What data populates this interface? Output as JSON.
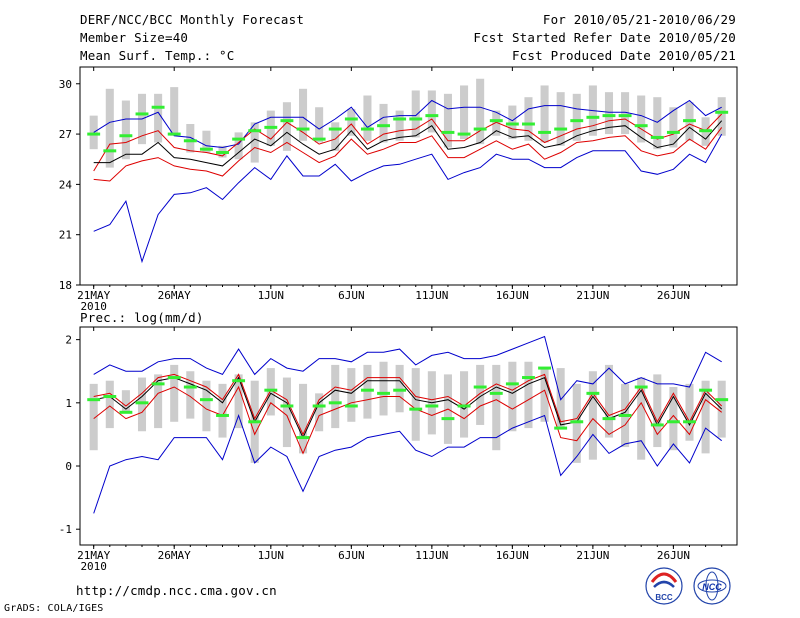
{
  "header": {
    "title": "DERF/NCC/BCC Monthly Forecast",
    "member_size": "Member Size=40",
    "variable1": "Mean Surf. Temp.: °C",
    "period": "For 2010/05/21-2010/06/29",
    "started": "Fcst Started Refer Date 2010/05/20",
    "produced": "Fcst Produced Date 2010/05/21"
  },
  "footer": {
    "url": "http://cmdp.ncc.cma.gov.cn",
    "grads": "GrADS: COLA/IGES",
    "logo1_text": "BCC",
    "logo2_text": "NCC"
  },
  "colors": {
    "box": "#cccccc",
    "mean": "#000000",
    "spread": "#dd0000",
    "envelope": "#0000cc",
    "median": "#33ee33"
  },
  "chart_data": [
    {
      "type": "box",
      "name": "temperature",
      "title": "Mean Surf. Temp.: °C",
      "ylim": [
        18,
        31
      ],
      "yticks": [
        18,
        21,
        24,
        27,
        30
      ],
      "x_tick_labels": [
        "21MAY",
        "26MAY",
        "1JUN",
        "6JUN",
        "11JUN",
        "16JUN",
        "21JUN",
        "26JUN"
      ],
      "x_tick_days": [
        0,
        5,
        11,
        16,
        21,
        26,
        31,
        36
      ],
      "year_label": "2010",
      "days": 40,
      "box_low": [
        26.1,
        25.0,
        25.5,
        26.4,
        26.5,
        26.9,
        25.9,
        25.9,
        25.6,
        25.5,
        25.3,
        26.3,
        26.0,
        26.6,
        26.5,
        26.0,
        26.9,
        26.6,
        26.5,
        26.6,
        26.8,
        27.1,
        26.2,
        26.7,
        26.4,
        26.9,
        26.7,
        26.6,
        26.5,
        26.3,
        26.6,
        26.9,
        27.0,
        27.0,
        26.5,
        26.1,
        26.2,
        26.6,
        26.3,
        26.9
      ],
      "box_high": [
        28.1,
        29.7,
        29.0,
        29.4,
        29.4,
        29.8,
        27.6,
        27.2,
        26.3,
        27.1,
        27.7,
        28.4,
        28.9,
        29.7,
        28.6,
        27.7,
        28.5,
        29.3,
        28.8,
        28.4,
        29.6,
        29.6,
        29.4,
        29.9,
        30.3,
        28.4,
        28.7,
        29.2,
        29.9,
        29.5,
        29.4,
        29.9,
        29.5,
        29.5,
        29.3,
        29.2,
        28.6,
        28.9,
        28.0,
        29.2
      ],
      "median": [
        27.0,
        26.0,
        26.9,
        28.2,
        28.6,
        27.0,
        26.6,
        26.1,
        25.9,
        26.7,
        27.2,
        27.4,
        27.8,
        27.3,
        26.7,
        27.3,
        27.9,
        27.3,
        27.5,
        27.9,
        27.9,
        28.1,
        27.1,
        27.0,
        27.3,
        27.8,
        27.6,
        27.6,
        27.1,
        27.3,
        27.8,
        28.0,
        28.1,
        28.1,
        27.5,
        26.8,
        27.1,
        27.8,
        27.2,
        28.3
      ],
      "mean": [
        25.3,
        25.3,
        25.8,
        25.8,
        26.5,
        25.6,
        25.5,
        25.3,
        25.1,
        25.9,
        26.7,
        26.3,
        27.1,
        26.4,
        25.8,
        26.1,
        27.2,
        26.1,
        26.6,
        26.8,
        26.9,
        27.5,
        26.1,
        26.2,
        26.5,
        27.2,
        26.8,
        26.9,
        26.2,
        26.4,
        26.9,
        27.2,
        27.4,
        27.5,
        26.8,
        26.2,
        26.4,
        27.4,
        26.7,
        27.8
      ],
      "upper": [
        24.8,
        26.4,
        26.5,
        26.9,
        27.2,
        26.2,
        26.0,
        25.9,
        25.7,
        26.5,
        27.3,
        26.7,
        27.7,
        27.1,
        26.4,
        26.7,
        27.6,
        26.4,
        27.0,
        27.2,
        27.3,
        27.9,
        26.6,
        26.6,
        27.2,
        27.7,
        27.3,
        27.2,
        26.5,
        26.9,
        27.3,
        27.5,
        27.8,
        27.9,
        27.3,
        26.7,
        27.0,
        27.6,
        27.2,
        28.2
      ],
      "lower": [
        24.3,
        24.2,
        25.1,
        25.4,
        25.6,
        25.1,
        24.9,
        24.8,
        24.5,
        25.4,
        26.2,
        25.9,
        26.5,
        25.9,
        25.3,
        25.7,
        26.7,
        25.8,
        26.1,
        26.5,
        26.5,
        26.9,
        25.6,
        25.6,
        26.1,
        26.6,
        26.1,
        26.4,
        25.5,
        25.9,
        26.5,
        26.6,
        26.8,
        26.9,
        26.0,
        25.7,
        25.9,
        26.7,
        26.1,
        27.4
      ],
      "env_max": [
        27.1,
        27.7,
        27.9,
        27.9,
        28.3,
        26.9,
        26.8,
        26.3,
        26.2,
        26.4,
        27.6,
        28.0,
        28.0,
        28.0,
        27.3,
        27.9,
        28.6,
        27.4,
        28.0,
        28.1,
        28.1,
        29.0,
        28.5,
        28.6,
        28.6,
        28.3,
        27.8,
        28.5,
        28.7,
        28.7,
        28.5,
        28.4,
        28.3,
        28.3,
        28.1,
        27.7,
        28.4,
        29.0,
        28.1,
        28.6
      ],
      "env_min": [
        21.2,
        21.6,
        23.0,
        19.4,
        22.2,
        23.4,
        23.5,
        23.8,
        23.1,
        24.1,
        25.0,
        24.3,
        25.7,
        24.5,
        24.5,
        25.2,
        24.2,
        24.7,
        25.1,
        25.2,
        25.5,
        25.8,
        24.3,
        24.7,
        25.0,
        25.8,
        25.5,
        25.5,
        25.0,
        25.0,
        25.6,
        26.0,
        26.0,
        26.0,
        24.8,
        24.6,
        24.9,
        25.8,
        25.3,
        27.0
      ]
    },
    {
      "type": "box",
      "name": "precipitation",
      "title": "Prec.: log(mm/d)",
      "ylim": [
        -1.25,
        2.2
      ],
      "yticks": [
        -1,
        0,
        1,
        2
      ],
      "x_tick_labels": [
        "21MAY",
        "26MAY",
        "1JUN",
        "6JUN",
        "11JUN",
        "16JUN",
        "21JUN",
        "26JUN"
      ],
      "x_tick_days": [
        0,
        5,
        11,
        16,
        21,
        26,
        31,
        36
      ],
      "year_label": "2010",
      "days": 40,
      "box_low": [
        0.25,
        0.6,
        0.85,
        0.55,
        0.6,
        0.7,
        0.75,
        0.55,
        0.45,
        0.6,
        0.05,
        0.8,
        0.3,
        0.2,
        0.55,
        0.6,
        0.7,
        0.75,
        0.8,
        0.85,
        0.4,
        0.5,
        0.35,
        0.45,
        0.65,
        0.25,
        0.55,
        0.6,
        0.7,
        0.6,
        0.05,
        0.1,
        0.45,
        0.3,
        0.1,
        0.3,
        0.25,
        0.4,
        0.2,
        0.45
      ],
      "box_high": [
        1.3,
        1.35,
        1.2,
        1.4,
        1.45,
        1.6,
        1.5,
        1.35,
        1.3,
        1.45,
        1.35,
        1.55,
        1.4,
        1.3,
        1.15,
        1.6,
        1.55,
        1.6,
        1.65,
        1.6,
        1.55,
        1.5,
        1.45,
        1.5,
        1.6,
        1.6,
        1.65,
        1.65,
        1.55,
        1.55,
        1.3,
        1.5,
        1.6,
        1.3,
        1.4,
        1.45,
        1.25,
        1.3,
        1.35,
        1.35
      ],
      "median": [
        1.05,
        1.1,
        0.85,
        1.0,
        1.3,
        1.4,
        1.25,
        1.05,
        0.8,
        1.35,
        0.7,
        1.2,
        0.95,
        0.45,
        0.95,
        1.0,
        0.95,
        1.2,
        1.15,
        1.2,
        0.9,
        0.95,
        0.75,
        0.95,
        1.25,
        1.15,
        1.3,
        1.4,
        1.55,
        0.6,
        0.7,
        1.15,
        0.75,
        0.8,
        1.25,
        0.65,
        0.7,
        0.7,
        1.2,
        1.05
      ],
      "mean": [
        1.05,
        1.1,
        0.9,
        1.1,
        1.35,
        1.4,
        1.3,
        1.2,
        1.0,
        1.4,
        0.7,
        1.15,
        1.0,
        0.45,
        1.0,
        1.2,
        1.15,
        1.35,
        1.35,
        1.35,
        1.05,
        1.0,
        1.05,
        0.9,
        1.1,
        1.25,
        1.15,
        1.3,
        1.4,
        0.65,
        0.7,
        1.1,
        0.75,
        0.85,
        1.2,
        0.65,
        1.1,
        0.65,
        1.15,
        0.9
      ],
      "upper": [
        1.1,
        1.15,
        0.95,
        1.15,
        1.4,
        1.45,
        1.35,
        1.25,
        1.05,
        1.45,
        0.75,
        1.2,
        1.05,
        0.5,
        1.05,
        1.25,
        1.2,
        1.4,
        1.4,
        1.4,
        1.1,
        1.05,
        1.1,
        0.95,
        1.15,
        1.3,
        1.2,
        1.35,
        1.45,
        0.7,
        0.75,
        1.15,
        0.8,
        0.9,
        1.25,
        0.7,
        1.15,
        0.7,
        1.2,
        0.95
      ],
      "lower": [
        0.75,
        0.95,
        0.75,
        0.85,
        1.15,
        1.25,
        1.1,
        0.9,
        0.8,
        1.25,
        0.5,
        1.0,
        0.8,
        0.2,
        0.8,
        0.9,
        1.0,
        1.05,
        1.1,
        1.1,
        0.9,
        0.8,
        0.9,
        0.75,
        0.95,
        1.05,
        0.9,
        1.05,
        1.2,
        0.45,
        0.4,
        0.75,
        0.5,
        0.65,
        1.0,
        0.5,
        0.8,
        0.5,
        1.05,
        0.85
      ],
      "env_max": [
        1.45,
        1.6,
        1.5,
        1.5,
        1.65,
        1.7,
        1.7,
        1.55,
        1.45,
        1.85,
        1.45,
        1.7,
        1.55,
        1.5,
        1.7,
        1.7,
        1.65,
        1.8,
        1.8,
        1.85,
        1.6,
        1.75,
        1.8,
        1.7,
        1.7,
        1.75,
        1.85,
        1.95,
        2.05,
        1.05,
        1.35,
        1.3,
        1.55,
        1.3,
        1.4,
        1.3,
        1.3,
        1.25,
        1.8,
        1.65
      ],
      "env_min": [
        -0.75,
        0.0,
        0.1,
        0.15,
        0.1,
        0.45,
        0.45,
        0.45,
        0.1,
        0.8,
        0.05,
        0.3,
        0.15,
        -0.4,
        0.15,
        0.25,
        0.3,
        0.45,
        0.5,
        0.55,
        0.25,
        0.15,
        0.3,
        0.3,
        0.45,
        0.45,
        0.6,
        0.7,
        0.8,
        -0.15,
        0.15,
        0.5,
        0.2,
        0.35,
        0.4,
        0.0,
        0.35,
        0.05,
        0.6,
        0.4
      ]
    }
  ]
}
